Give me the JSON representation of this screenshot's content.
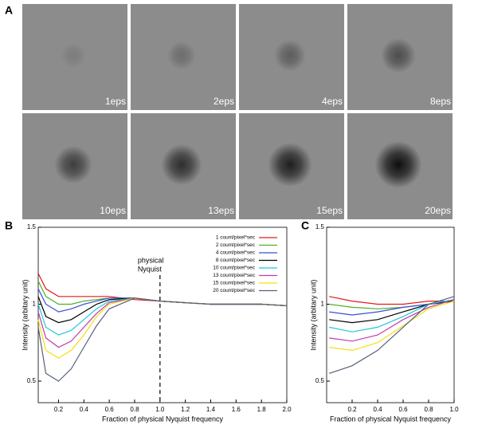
{
  "panel_a": {
    "label": "A",
    "images": [
      {
        "label": "1eps"
      },
      {
        "label": "2eps"
      },
      {
        "label": "4eps"
      },
      {
        "label": "8eps"
      },
      {
        "label": "10eps"
      },
      {
        "label": "13eps"
      },
      {
        "label": "15eps"
      },
      {
        "label": "20eps"
      }
    ]
  },
  "chart_data": [
    {
      "type": "line",
      "panel_label": "B",
      "xlabel": "Fraction of physical Nyquist frequency",
      "ylabel": "Intensity (arbitary unit)",
      "x": [
        0.04,
        0.1,
        0.2,
        0.3,
        0.4,
        0.5,
        0.6,
        0.8,
        1.0,
        1.2,
        1.4,
        1.6,
        1.8,
        2.0
      ],
      "xlim": [
        0.04,
        2.0
      ],
      "xticks": [
        0.2,
        0.4,
        0.6,
        0.8,
        {
          "value": 1,
          "label": "1.0"
        },
        1.2,
        1.4,
        1.6,
        1.8,
        {
          "value": 2,
          "label": "2.0"
        }
      ],
      "ylim": [
        0.36,
        1.5
      ],
      "yticks": [
        0.5,
        1,
        1.5
      ],
      "vline": 1,
      "annotation": [
        "physical",
        "Nyquist"
      ],
      "series": [
        {
          "name": "1 count/pixel*sec",
          "color": "#e41a1c",
          "values": [
            1.2,
            1.1,
            1.05,
            1.05,
            1.05,
            1.05,
            1.05,
            1.03,
            1.02,
            1.01,
            1.0,
            1.0,
            1.0,
            0.99
          ]
        },
        {
          "name": "2 count/pixel*sec",
          "color": "#4daf2a",
          "values": [
            1.15,
            1.05,
            1.0,
            1.0,
            1.02,
            1.03,
            1.04,
            1.04,
            1.02,
            1.01,
            1.0,
            1.0,
            1.0,
            0.99
          ]
        },
        {
          "name": "4 count/pixel*sec",
          "color": "#3a4fd8",
          "values": [
            1.1,
            1.0,
            0.95,
            0.97,
            1.0,
            1.02,
            1.04,
            1.04,
            1.02,
            1.01,
            1.0,
            1.0,
            1.0,
            0.99
          ]
        },
        {
          "name": "8 count/pixel*sec",
          "color": "#000000",
          "values": [
            1.05,
            0.92,
            0.88,
            0.9,
            0.95,
            1.0,
            1.03,
            1.04,
            1.02,
            1.01,
            1.0,
            1.0,
            1.0,
            0.99
          ]
        },
        {
          "name": "10 count/pixel*sec",
          "color": "#22c8d8",
          "values": [
            1.0,
            0.85,
            0.8,
            0.83,
            0.9,
            0.97,
            1.02,
            1.04,
            1.02,
            1.01,
            1.0,
            1.0,
            1.0,
            0.99
          ]
        },
        {
          "name": "13 count/pixel*sec",
          "color": "#c03ab0",
          "values": [
            0.95,
            0.78,
            0.72,
            0.76,
            0.85,
            0.94,
            1.01,
            1.04,
            1.02,
            1.01,
            1.0,
            1.0,
            1.0,
            0.99
          ]
        },
        {
          "name": "15 count/pixel*sec",
          "color": "#f2e011",
          "values": [
            0.9,
            0.7,
            0.65,
            0.7,
            0.8,
            0.92,
            1.0,
            1.04,
            1.02,
            1.01,
            1.0,
            1.0,
            1.0,
            0.99
          ]
        },
        {
          "name": "20 count/pixel*sec",
          "color": "#56607a",
          "values": [
            0.85,
            0.55,
            0.5,
            0.58,
            0.72,
            0.86,
            0.97,
            1.04,
            1.02,
            1.01,
            1.0,
            1.0,
            1.0,
            0.99
          ]
        }
      ]
    },
    {
      "type": "line",
      "panel_label": "C",
      "xlabel": "Fraction of physical Nyquist frequency",
      "ylabel": "Intensity (arbitary unit)",
      "x": [
        0.02,
        0.2,
        0.4,
        0.6,
        0.8,
        1.0
      ],
      "xlim": [
        0,
        1
      ],
      "xticks": [
        0.2,
        0.4,
        0.6,
        0.8,
        {
          "value": 1,
          "label": "1.0"
        }
      ],
      "ylim": [
        0.36,
        1.5
      ],
      "yticks": [
        0.5,
        1,
        1.5
      ],
      "series": [
        {
          "color": "#e41a1c",
          "values": [
            1.05,
            1.02,
            1.0,
            1.0,
            1.02,
            1.02
          ]
        },
        {
          "color": "#4daf2a",
          "values": [
            1.0,
            0.98,
            0.97,
            0.98,
            1.0,
            1.02
          ]
        },
        {
          "color": "#3a4fd8",
          "values": [
            0.95,
            0.93,
            0.95,
            0.98,
            1.0,
            1.03
          ]
        },
        {
          "color": "#000000",
          "values": [
            0.9,
            0.88,
            0.9,
            0.95,
            1.0,
            1.02
          ]
        },
        {
          "color": "#22c8d8",
          "values": [
            0.85,
            0.82,
            0.85,
            0.92,
            1.0,
            1.03
          ]
        },
        {
          "color": "#c03ab0",
          "values": [
            0.78,
            0.76,
            0.8,
            0.9,
            0.98,
            1.03
          ]
        },
        {
          "color": "#f2e011",
          "values": [
            0.72,
            0.7,
            0.75,
            0.86,
            0.97,
            1.02
          ]
        },
        {
          "color": "#56607a",
          "values": [
            0.55,
            0.6,
            0.7,
            0.85,
            1.0,
            1.05
          ]
        }
      ]
    }
  ]
}
